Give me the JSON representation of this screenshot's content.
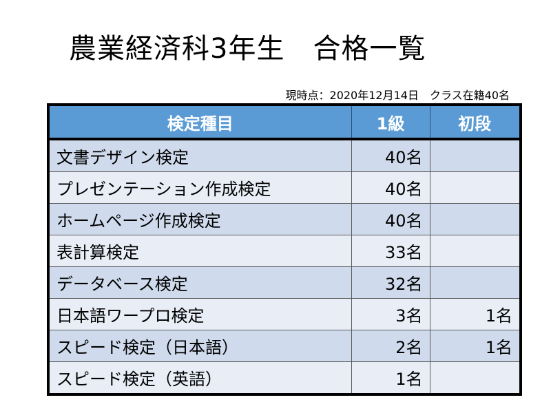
{
  "title": "農業経済科3年生　合格一覧",
  "subtitle": "現時点：2020年12月14日　クラス在籍40名",
  "table": {
    "headers": [
      "検定種目",
      "1級",
      "初段"
    ],
    "rows": [
      {
        "name": "文書デザイン検定",
        "grade1": "40名",
        "shodan": ""
      },
      {
        "name": "プレゼンテーション作成検定",
        "grade1": "40名",
        "shodan": ""
      },
      {
        "name": "ホームページ作成検定",
        "grade1": "40名",
        "shodan": ""
      },
      {
        "name": "表計算検定",
        "grade1": "33名",
        "shodan": ""
      },
      {
        "name": "データベース検定",
        "grade1": "32名",
        "shodan": ""
      },
      {
        "name": "日本語ワープロ検定",
        "grade1": "3名",
        "shodan": "1名"
      },
      {
        "name": "スピード検定（日本語）",
        "grade1": "2名",
        "shodan": "1名"
      },
      {
        "name": "スピード検定（英語）",
        "grade1": "1名",
        "shodan": ""
      }
    ]
  },
  "colors": {
    "header_bg": "#5b9bd5",
    "row_odd": "#cfdbec",
    "row_even": "#e8edf6"
  }
}
